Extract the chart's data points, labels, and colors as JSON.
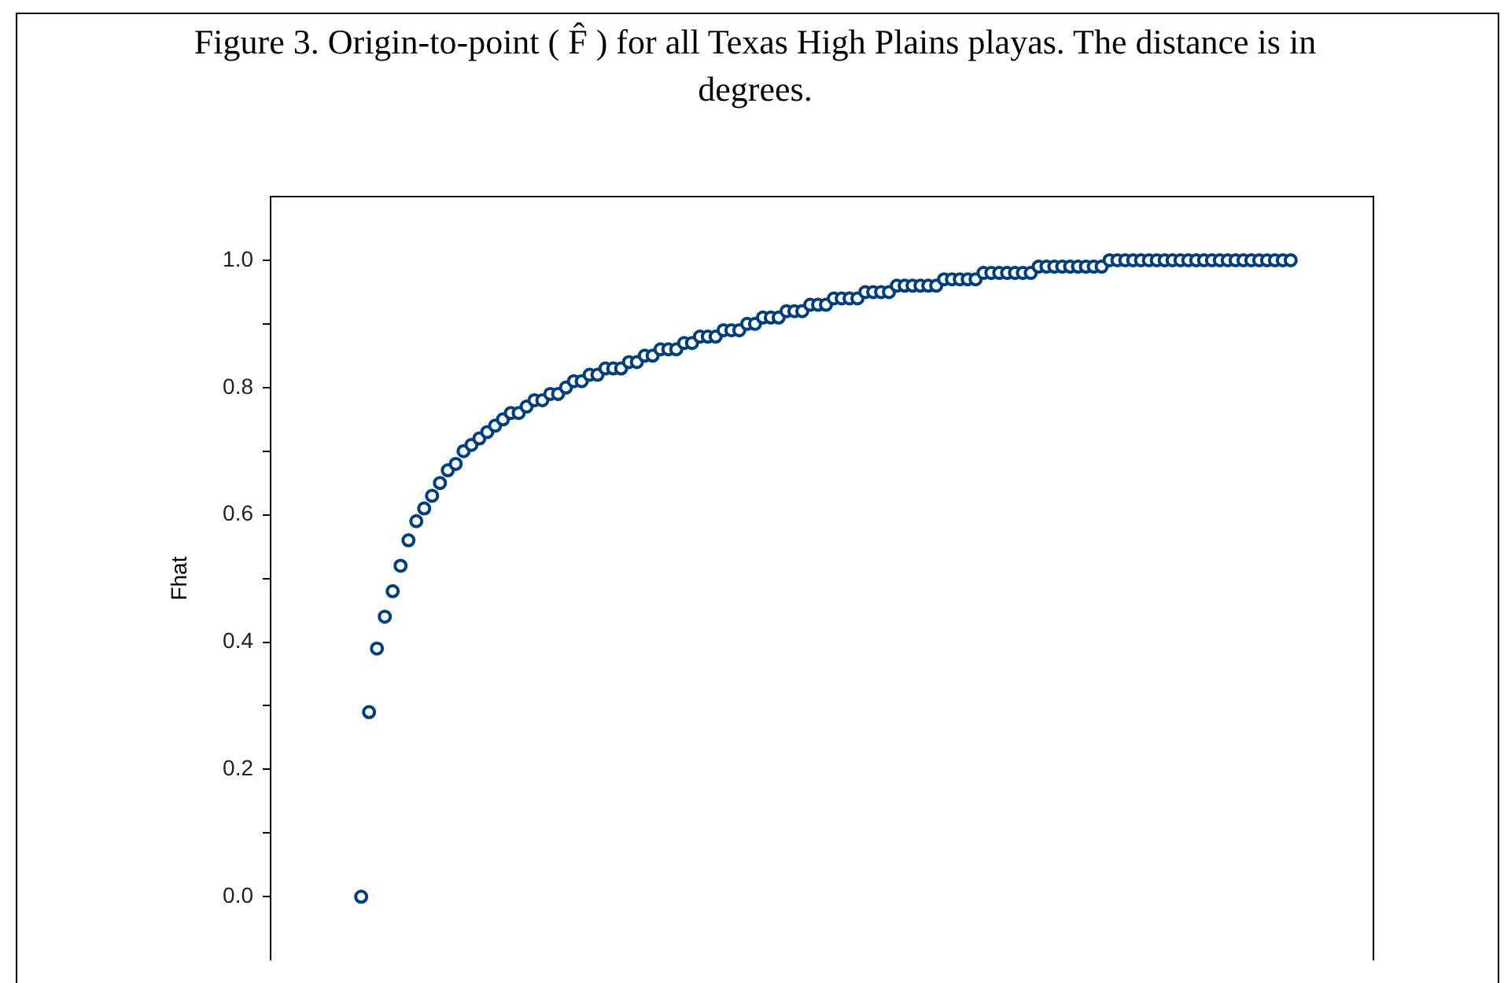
{
  "chart_data": {
    "type": "scatter",
    "title": "Figure 3.  Origin-to-point ( F̂ ) for all Texas High Plains playas.  The distance is in degrees.",
    "ylabel": "Fhat",
    "categories": [
      null,
      null,
      null,
      null,
      null,
      null,
      null,
      null,
      null,
      null,
      null,
      null,
      null,
      null,
      null,
      null,
      null,
      null,
      null,
      null,
      null,
      null,
      null,
      null,
      null,
      null,
      null,
      null,
      null,
      null,
      null,
      null,
      null,
      null,
      null,
      null,
      null,
      null,
      null,
      null,
      null,
      null,
      null,
      null,
      null,
      null,
      null,
      null,
      null,
      null,
      null,
      null,
      null,
      null,
      null,
      null,
      null,
      null,
      null,
      null,
      null,
      null,
      null,
      null,
      null,
      null,
      null,
      null,
      null,
      null,
      null,
      null,
      null,
      null,
      null,
      null,
      null,
      null,
      null,
      null,
      null,
      null,
      null,
      null,
      null,
      null,
      null,
      null,
      null,
      null,
      null,
      null,
      null,
      null,
      null,
      null,
      null,
      null,
      null,
      null,
      null,
      null,
      null,
      null,
      null,
      null,
      null,
      null,
      null,
      null,
      null,
      null,
      null,
      null,
      null,
      null,
      null,
      null,
      null,
      null,
      null,
      null,
      null,
      null,
      null,
      null,
      null,
      null,
      null,
      null,
      null,
      null,
      null,
      null,
      null,
      null,
      null,
      null,
      null,
      null
    ],
    "values": [
      null,
      null,
      null,
      null,
      null,
      null,
      null,
      null,
      null,
      null,
      null,
      0,
      0.29,
      0.39,
      0.44,
      0.48,
      0.52,
      0.56,
      0.59,
      0.61,
      0.63,
      0.65,
      0.67,
      0.68,
      0.7,
      0.71,
      0.72,
      0.73,
      0.74,
      0.75,
      0.76,
      0.76,
      0.77,
      0.78,
      0.78,
      0.79,
      0.79,
      0.8,
      0.81,
      0.81,
      0.82,
      0.82,
      0.83,
      0.83,
      0.83,
      0.84,
      0.84,
      0.85,
      0.85,
      0.86,
      0.86,
      0.86,
      0.87,
      0.87,
      0.88,
      0.88,
      0.88,
      0.89,
      0.89,
      0.89,
      0.9,
      0.9,
      0.91,
      0.91,
      0.91,
      0.92,
      0.92,
      0.92,
      0.93,
      0.93,
      0.93,
      0.94,
      0.94,
      0.94,
      0.94,
      0.95,
      0.95,
      0.95,
      0.95,
      0.96,
      0.96,
      0.96,
      0.96,
      0.96,
      0.96,
      0.97,
      0.97,
      0.97,
      0.97,
      0.97,
      0.98,
      0.98,
      0.98,
      0.98,
      0.98,
      0.98,
      0.98,
      0.99,
      0.99,
      0.99,
      0.99,
      0.99,
      0.99,
      0.99,
      0.99,
      0.99,
      1.0,
      1.0,
      1.0,
      1.0,
      1.0,
      1.0,
      1.0,
      1.0,
      1.0,
      1.0,
      1.0,
      1.0,
      1.0,
      1.0,
      1.0,
      1.0,
      1.0,
      1.0,
      1.0,
      1.0,
      1.0,
      1.0,
      1.0,
      1.0,
      null,
      null,
      null,
      null,
      null,
      null,
      null,
      null,
      null,
      null
    ],
    "color": "#003f7f",
    "marker": "circle",
    "grid": false,
    "legend": false,
    "tick_labels": "y",
    "ylim": [
      -0.1,
      1.1
    ],
    "yticks": [
      {
        "value": 0,
        "label": "0.0"
      },
      {
        "value": 0.1,
        "label": null
      },
      {
        "value": 0.2,
        "label": "0.2"
      },
      {
        "value": 0.3,
        "label": null
      },
      {
        "value": 0.4,
        "label": "0.4"
      },
      {
        "value": 0.5,
        "label": null
      },
      {
        "value": 0.6,
        "label": "0.6"
      },
      {
        "value": 0.7,
        "label": null
      },
      {
        "value": 0.8,
        "label": "0.8"
      },
      {
        "value": 0.9,
        "label": null
      },
      {
        "value": 1,
        "label": "1.0"
      }
    ]
  }
}
